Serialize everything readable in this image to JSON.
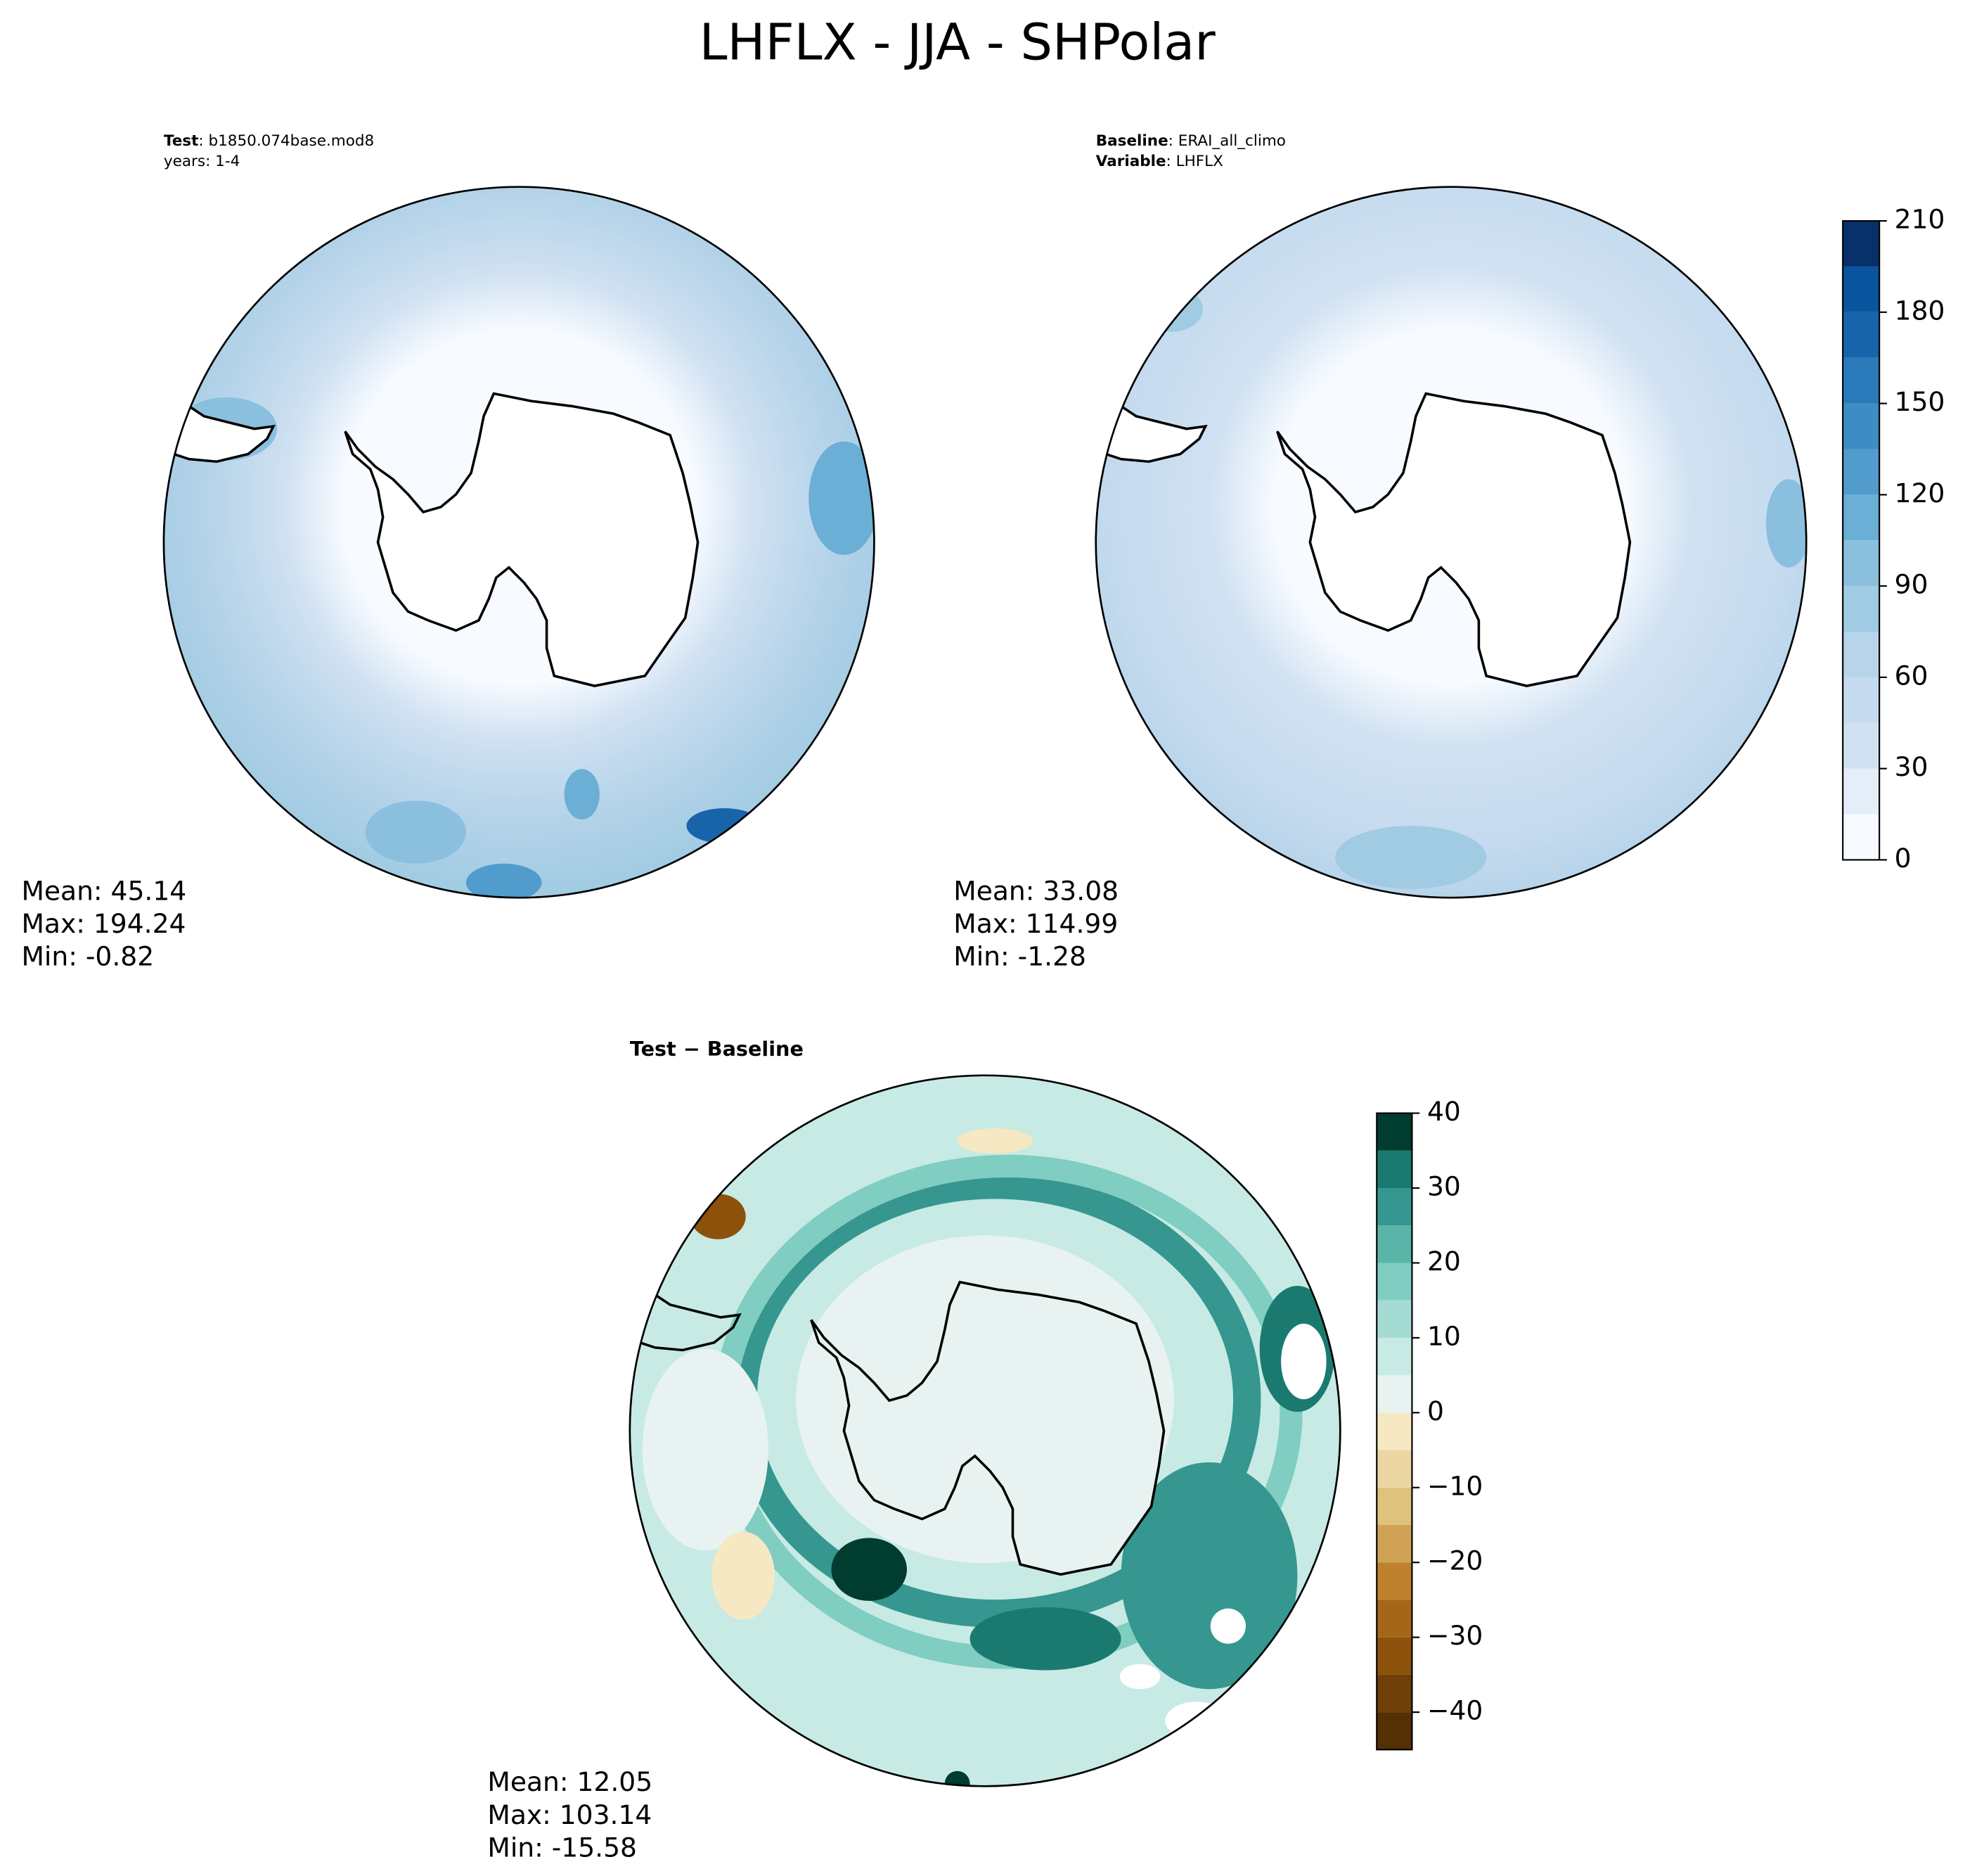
{
  "title": "LHFLX - JJA - SHPolar",
  "panels": [
    {
      "header": [
        {
          "label": "Test",
          "text": ": b1850.074base.mod8"
        },
        {
          "text": "years: 1-4"
        }
      ],
      "stats": [
        "Mean: 45.14",
        "Max: 194.24",
        "Min: -0.82"
      ]
    },
    {
      "header": [
        {
          "label": "Baseline",
          "text": ": ERAI_all_climo"
        },
        {
          "label": "Variable",
          "text": ": LHFLX"
        }
      ],
      "stats": [
        "Mean: 33.08",
        "Max: 114.99",
        "Min: -1.28"
      ]
    },
    {
      "title": "Test − Baseline",
      "stats": [
        "Mean: 12.05",
        "Max: 103.14",
        "Min: -15.58"
      ]
    }
  ],
  "colorbars": [
    {
      "lim": [
        0,
        210
      ],
      "ticks": [
        0,
        30,
        60,
        90,
        120,
        150,
        180,
        210
      ],
      "levels": [
        0,
        15,
        30,
        45,
        60,
        75,
        90,
        105,
        120,
        135,
        150,
        165,
        180,
        195,
        210
      ],
      "colors": [
        "#f7fbff",
        "#e3eef9",
        "#d0e1f2",
        "#c6dbef",
        "#b7d4ea",
        "#a0cbe2",
        "#8ac0dd",
        "#6baed6",
        "#519ccc",
        "#3d8dc4",
        "#2a7ab9",
        "#1764ab",
        "#0a539e",
        "#08306b"
      ]
    },
    {
      "lim": [
        -45,
        40
      ],
      "ticks": [
        {
          "value": -40,
          "label": "−40"
        },
        {
          "value": -30,
          "label": "−30"
        },
        {
          "value": -20,
          "label": "−20"
        },
        {
          "value": -10,
          "label": "−10"
        },
        0,
        10,
        20,
        30,
        40
      ],
      "levels": [
        -45,
        -40,
        -35,
        -30,
        -25,
        -20,
        -15,
        -10,
        -5,
        0,
        5,
        10,
        15,
        20,
        25,
        30,
        35,
        40
      ],
      "colors": [
        "#543005",
        "#6f3f08",
        "#8c510a",
        "#a6661a",
        "#bf812d",
        "#cfa256",
        "#dfc27d",
        "#ebd6a4",
        "#f6e8c3",
        "#e8f3f1",
        "#c7eae5",
        "#a4dbd3",
        "#80cdc1",
        "#5ab4a8",
        "#35978f",
        "#1a7a70",
        "#003c30"
      ]
    }
  ]
}
